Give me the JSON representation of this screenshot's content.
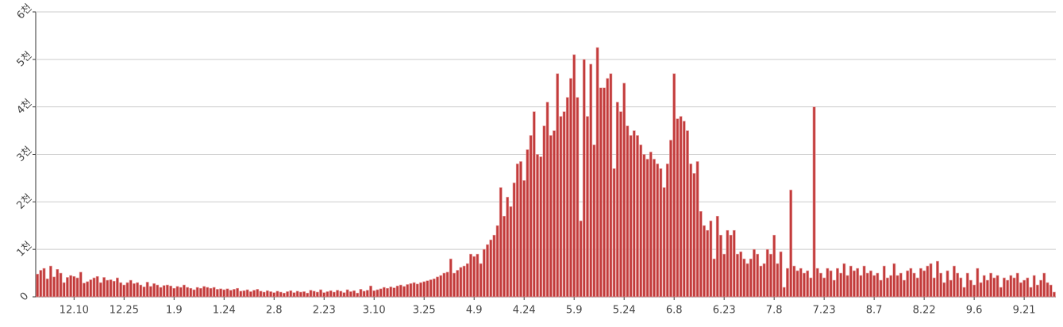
{
  "chart_data": {
    "type": "bar",
    "color": "#c23b3b",
    "grid": true,
    "categories": [
      null,
      null,
      null,
      null,
      null,
      null,
      null,
      null,
      null,
      null,
      null,
      "12.10",
      null,
      null,
      null,
      null,
      null,
      null,
      null,
      null,
      null,
      null,
      null,
      null,
      null,
      null,
      "12.25",
      null,
      null,
      null,
      null,
      null,
      null,
      null,
      null,
      null,
      null,
      null,
      null,
      null,
      null,
      "1.9",
      null,
      null,
      null,
      null,
      null,
      null,
      null,
      null,
      null,
      null,
      null,
      null,
      null,
      null,
      "1.24",
      null,
      null,
      null,
      null,
      null,
      null,
      null,
      null,
      null,
      null,
      null,
      null,
      null,
      null,
      "2.8",
      null,
      null,
      null,
      null,
      null,
      null,
      null,
      null,
      null,
      null,
      null,
      null,
      null,
      null,
      "2.23",
      null,
      null,
      null,
      null,
      null,
      null,
      null,
      null,
      null,
      null,
      null,
      null,
      null,
      null,
      "3.10",
      null,
      null,
      null,
      null,
      null,
      null,
      null,
      null,
      null,
      null,
      null,
      null,
      null,
      null,
      "3.25",
      null,
      null,
      null,
      null,
      null,
      null,
      null,
      null,
      null,
      null,
      null,
      null,
      null,
      null,
      "4.9",
      null,
      null,
      null,
      null,
      null,
      null,
      null,
      null,
      null,
      null,
      null,
      null,
      null,
      null,
      "4.24",
      null,
      null,
      null,
      null,
      null,
      null,
      null,
      null,
      null,
      null,
      null,
      null,
      null,
      null,
      "5.9",
      null,
      null,
      null,
      null,
      null,
      null,
      null,
      null,
      null,
      null,
      null,
      null,
      null,
      null,
      "5.24",
      null,
      null,
      null,
      null,
      null,
      null,
      null,
      null,
      null,
      null,
      null,
      null,
      null,
      null,
      "6.8",
      null,
      null,
      null,
      null,
      null,
      null,
      null,
      null,
      null,
      null,
      null,
      null,
      null,
      null,
      "6.23",
      null,
      null,
      null,
      null,
      null,
      null,
      null,
      null,
      null,
      null,
      null,
      null,
      null,
      null,
      "7.8",
      null,
      null,
      null,
      null,
      null,
      null,
      null,
      null,
      null,
      null,
      null,
      null,
      null,
      null,
      "7.23",
      null,
      null,
      null,
      null,
      null,
      null,
      null,
      null,
      null,
      null,
      null,
      null,
      null,
      null,
      "8.7",
      null,
      null,
      null,
      null,
      null,
      null,
      null,
      null,
      null,
      null,
      null,
      null,
      null,
      null,
      "8.22",
      null,
      null,
      null,
      null,
      null,
      null,
      null,
      null,
      null,
      null,
      null,
      null,
      null,
      null,
      "9.6",
      null,
      null,
      null,
      null,
      null,
      null,
      null,
      null,
      null,
      null,
      null,
      null,
      null,
      null,
      "9.21",
      null,
      null,
      null,
      null,
      null,
      null,
      null,
      null,
      null
    ],
    "values": [
      480,
      560,
      600,
      380,
      650,
      420,
      580,
      500,
      300,
      410,
      450,
      430,
      400,
      520,
      290,
      320,
      360,
      400,
      430,
      300,
      410,
      350,
      360,
      330,
      400,
      300,
      250,
      300,
      350,
      280,
      300,
      250,
      210,
      310,
      220,
      280,
      250,
      200,
      240,
      250,
      230,
      180,
      220,
      200,
      250,
      200,
      180,
      150,
      200,
      180,
      220,
      200,
      180,
      200,
      160,
      170,
      150,
      170,
      140,
      160,
      180,
      120,
      130,
      150,
      110,
      140,
      160,
      120,
      100,
      130,
      110,
      90,
      120,
      100,
      80,
      110,
      130,
      90,
      120,
      100,
      110,
      80,
      140,
      120,
      100,
      150,
      90,
      110,
      130,
      100,
      140,
      120,
      90,
      150,
      110,
      130,
      80,
      160,
      120,
      140,
      230,
      130,
      150,
      170,
      200,
      180,
      210,
      190,
      230,
      250,
      220,
      260,
      280,
      300,
      270,
      300,
      320,
      340,
      360,
      380,
      420,
      450,
      500,
      520,
      800,
      500,
      560,
      620,
      650,
      700,
      900,
      850,
      900,
      700,
      1000,
      1100,
      1200,
      1300,
      1500,
      2300,
      1700,
      2100,
      1900,
      2400,
      2800,
      2850,
      2450,
      3100,
      3400,
      3900,
      3000,
      2950,
      3600,
      4100,
      3400,
      3500,
      4700,
      3800,
      3900,
      4200,
      4600,
      5100,
      4200,
      1600,
      5000,
      3800,
      4900,
      3200,
      5250,
      4400,
      4400,
      4600,
      4700,
      2700,
      4100,
      3900,
      4500,
      3600,
      3400,
      3500,
      3400,
      3200,
      3000,
      2900,
      3050,
      2900,
      2800,
      2700,
      2300,
      2800,
      3300,
      4700,
      3750,
      3800,
      3700,
      3500,
      2800,
      2600,
      2850,
      1800,
      1500,
      1400,
      1600,
      800,
      1700,
      1300,
      900,
      1400,
      1300,
      1400,
      900,
      950,
      800,
      700,
      800,
      1000,
      900,
      650,
      700,
      1000,
      900,
      1300,
      700,
      950,
      200,
      600,
      2250,
      650,
      550,
      600,
      500,
      550,
      400,
      4000,
      600,
      500,
      400,
      600,
      550,
      350,
      600,
      500,
      700,
      450,
      650,
      550,
      600,
      450,
      650,
      500,
      550,
      450,
      500,
      350,
      650,
      400,
      450,
      700,
      450,
      500,
      350,
      550,
      600,
      500,
      400,
      600,
      550,
      650,
      700,
      400,
      750,
      500,
      300,
      550,
      350,
      650,
      500,
      400,
      200,
      500,
      350,
      250,
      600,
      300,
      450,
      350,
      500,
      400,
      450,
      200,
      400,
      350,
      450,
      400,
      500,
      300,
      350,
      400,
      200,
      450,
      250,
      350,
      500,
      300,
      250,
      100
    ],
    "ylim": [
      0,
      6000
    ],
    "yticks": [
      0,
      {
        "value": 1000,
        "label": "1천"
      },
      {
        "value": 2000,
        "label": "2천"
      },
      {
        "value": 3000,
        "label": "3천"
      },
      {
        "value": 4000,
        "label": "4천"
      },
      {
        "value": 5000,
        "label": "5천"
      },
      {
        "value": 6000,
        "label": "6천"
      }
    ]
  }
}
